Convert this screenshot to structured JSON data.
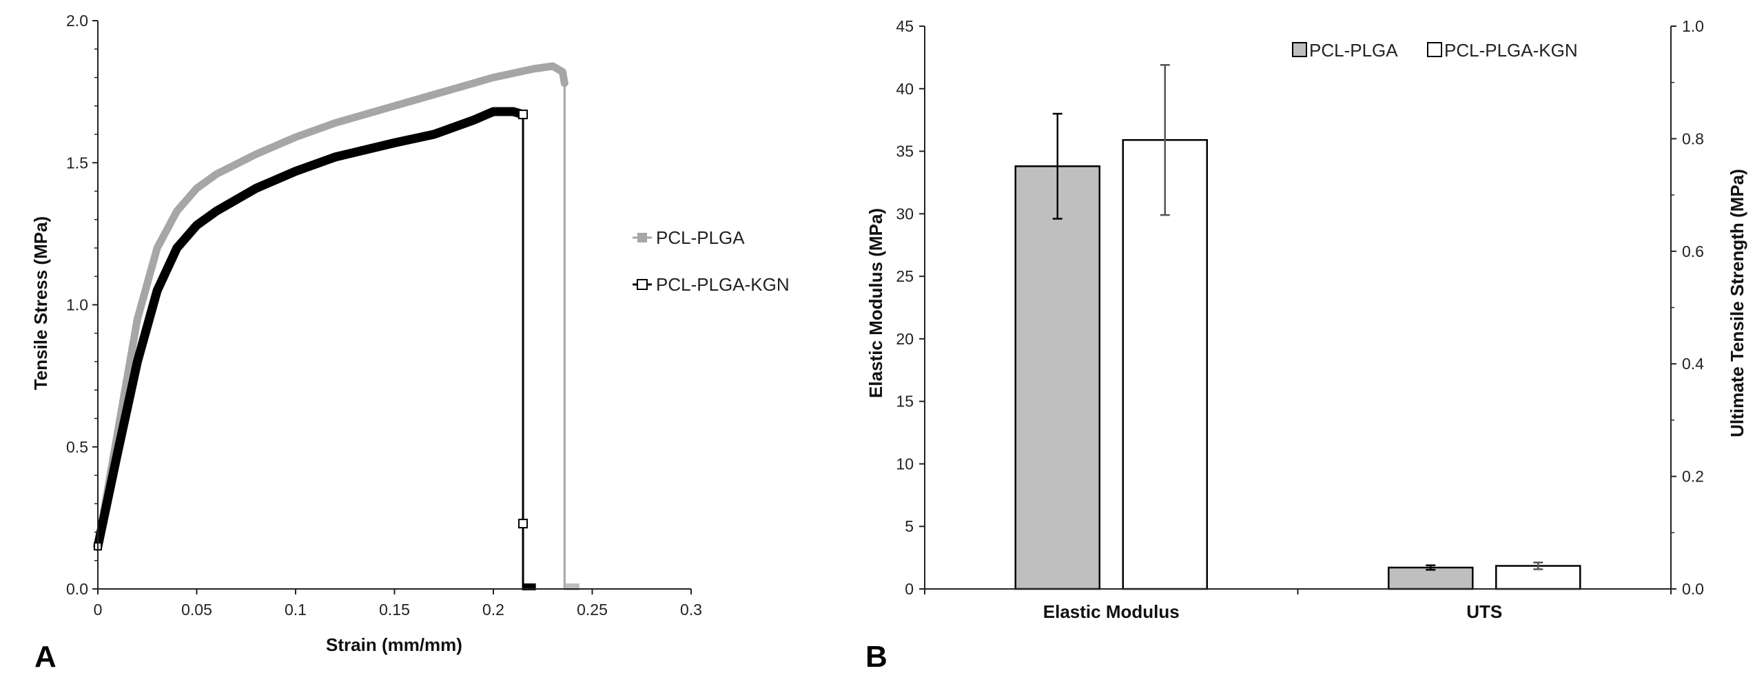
{
  "chart_data": [
    {
      "panel": "A",
      "type": "line",
      "xlabel": "Strain (mm/mm)",
      "ylabel": "Tensile Stress (MPa)",
      "xlim": [
        0,
        0.3
      ],
      "ylim": [
        0,
        2.0
      ],
      "xticks": [
        "0",
        "0.05",
        "0.1",
        "0.15",
        "0.2",
        "0.25",
        "0.3"
      ],
      "yticks": [
        "0.0",
        "0.5",
        "1.0",
        "1.5",
        "2.0"
      ],
      "legend_position": "right",
      "series": [
        {
          "name": "PCL-PLGA",
          "color": "#a6a6a6",
          "x": [
            0,
            0.01,
            0.02,
            0.03,
            0.04,
            0.05,
            0.06,
            0.08,
            0.1,
            0.12,
            0.15,
            0.18,
            0.2,
            0.22,
            0.23,
            0.235,
            0.236,
            0.236,
            0.24
          ],
          "y": [
            0.15,
            0.55,
            0.95,
            1.2,
            1.33,
            1.41,
            1.46,
            1.53,
            1.59,
            1.64,
            1.7,
            1.76,
            1.8,
            1.83,
            1.84,
            1.82,
            1.78,
            0.0,
            0.0
          ]
        },
        {
          "name": "PCL-PLGA-KGN",
          "color": "#000000",
          "x": [
            0,
            0.01,
            0.02,
            0.03,
            0.04,
            0.05,
            0.06,
            0.08,
            0.1,
            0.12,
            0.15,
            0.17,
            0.19,
            0.2,
            0.21,
            0.215,
            0.215,
            0.218
          ],
          "y": [
            0.15,
            0.48,
            0.8,
            1.05,
            1.2,
            1.28,
            1.33,
            1.41,
            1.47,
            1.52,
            1.57,
            1.6,
            1.65,
            1.68,
            1.68,
            1.67,
            0.0,
            0.0
          ]
        }
      ]
    },
    {
      "panel": "B",
      "type": "bar",
      "categories": [
        "Elastic Modulus",
        "UTS"
      ],
      "ylabel": "Elastic Modulus (MPa)",
      "y2label": "Ultimate Tensile Strength (MPa)",
      "ylim": [
        0,
        45
      ],
      "y2lim": [
        0,
        1.0
      ],
      "yticks": [
        "0",
        "5",
        "10",
        "15",
        "20",
        "25",
        "30",
        "35",
        "40",
        "45"
      ],
      "y2ticks": [
        "0.0",
        "0.2",
        "0.4",
        "0.6",
        "0.8",
        "1.0"
      ],
      "legend_position": "top-right",
      "series": [
        {
          "name": "PCL-PLGA",
          "color": "#bfbfbf",
          "values": [
            33.8,
            0.038
          ],
          "errors": [
            4.2,
            0.004
          ],
          "axis": [
            "left",
            "right"
          ]
        },
        {
          "name": "PCL-PLGA-KGN",
          "color": "#ffffff",
          "values": [
            35.9,
            0.041
          ],
          "errors": [
            6.0,
            0.006
          ],
          "axis": [
            "left",
            "right"
          ]
        }
      ]
    }
  ]
}
